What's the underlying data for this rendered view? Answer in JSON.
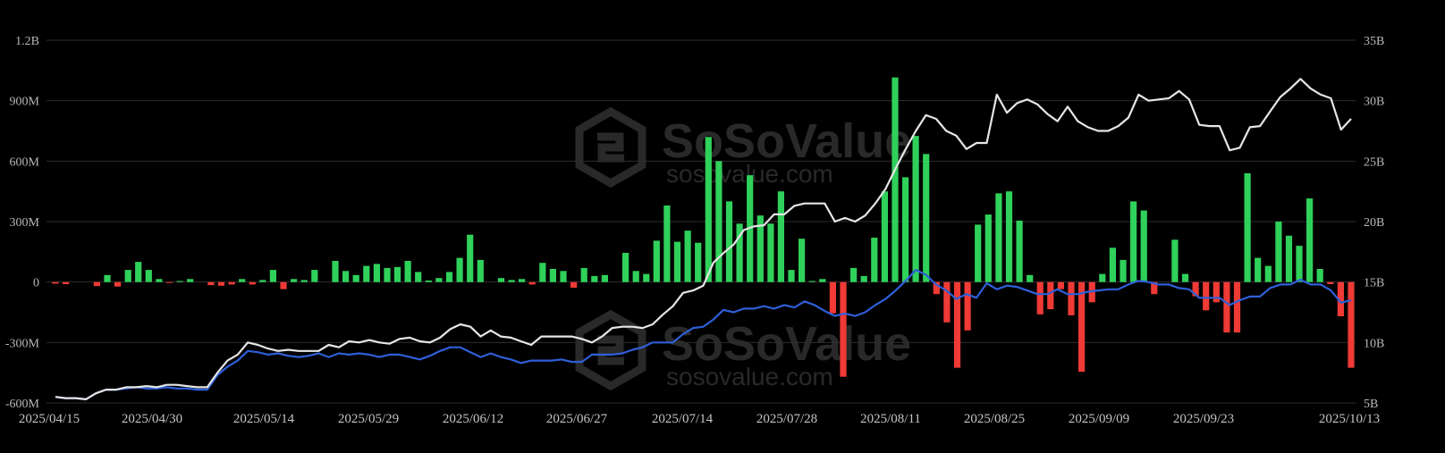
{
  "watermark": {
    "name": "SoSoValue",
    "url": "sosovalue.com"
  },
  "colors": {
    "inflow": "#2fd15a",
    "outflow": "#ef3a35",
    "line_white": "#e6e6e6",
    "line_blue": "#2f5fd8",
    "grid": "#2e2e2e"
  },
  "chart_data": {
    "type": "bar+line",
    "left_axis": {
      "ticks": [
        "1.2B",
        "900M",
        "600M",
        "300M",
        "0",
        "-300M",
        "-600M"
      ],
      "ylim": [
        -600,
        1200
      ],
      "unit": "M"
    },
    "right_axis": {
      "ticks": [
        "35B",
        "30B",
        "25B",
        "20B",
        "15B",
        "10B",
        "5B"
      ],
      "ylim": [
        5,
        35
      ],
      "unit": "B"
    },
    "x_ticks": [
      "2025/04/15",
      "2025/04/30",
      "2025/05/14",
      "2025/05/29",
      "2025/06/12",
      "2025/06/27",
      "2025/07/14",
      "2025/07/28",
      "2025/08/11",
      "2025/08/25",
      "2025/09/09",
      "2025/09/23",
      "2025/10/13"
    ],
    "series": [
      {
        "type": "bar",
        "values": [
          -8,
          -10,
          0,
          0,
          -20,
          35,
          -22,
          60,
          100,
          60,
          15,
          -3,
          5,
          15,
          0,
          -15,
          -18,
          -12,
          15,
          -12,
          10,
          60,
          -35,
          15,
          10,
          60,
          0,
          105,
          55,
          35,
          80,
          90,
          70,
          75,
          105,
          50,
          8,
          20,
          50,
          120,
          235,
          110,
          0,
          20,
          10,
          15,
          -12,
          95,
          65,
          55,
          -28,
          70,
          30,
          35,
          0,
          145,
          55,
          40,
          205,
          380,
          200,
          255,
          195,
          720,
          600,
          400,
          290,
          530,
          330,
          290,
          450,
          60,
          215,
          5,
          15,
          -155,
          -470,
          70,
          30,
          220,
          450,
          1015,
          520,
          725,
          635,
          -60,
          -200,
          -425,
          -240,
          285,
          335,
          440,
          450,
          305,
          35,
          -160,
          -135,
          -35,
          -165,
          -445,
          -100,
          40,
          170,
          110,
          400,
          355,
          -60,
          0,
          210,
          40,
          -70,
          -140,
          -100,
          -250,
          -250,
          540,
          120,
          80,
          300,
          230,
          180,
          415,
          65,
          -10,
          -170,
          -425
        ]
      },
      {
        "type": "line",
        "color": "white",
        "values": [
          5.5,
          5.4,
          5.4,
          5.3,
          5.8,
          6.1,
          6.1,
          6.3,
          6.3,
          6.4,
          6.3,
          6.5,
          6.5,
          6.4,
          6.3,
          6.3,
          7.5,
          8.5,
          9.0,
          10.0,
          9.8,
          9.5,
          9.3,
          9.4,
          9.3,
          9.3,
          9.3,
          9.8,
          9.6,
          10.1,
          10.0,
          10.2,
          10.0,
          9.9,
          10.3,
          10.4,
          10.1,
          10.0,
          10.4,
          11.1,
          11.5,
          11.3,
          10.5,
          11.0,
          10.5,
          10.4,
          10.1,
          9.8,
          10.5,
          10.5,
          10.5,
          10.5,
          10.3,
          10.0,
          10.5,
          11.2,
          11.3,
          11.3,
          11.2,
          11.5,
          12.3,
          13.0,
          14.1,
          14.3,
          14.7,
          16.6,
          17.4,
          18.1,
          19.3,
          19.6,
          19.7,
          20.6,
          20.6,
          21.3,
          21.5,
          21.5,
          21.5,
          20.0,
          20.3,
          20.0,
          20.5,
          21.5,
          22.7,
          24.4,
          26.0,
          27.5,
          28.8,
          28.5,
          27.5,
          27.1,
          26.0,
          26.5,
          26.5,
          30.5,
          29.0,
          29.8,
          30.1,
          29.7,
          28.9,
          28.3,
          29.5,
          28.3,
          27.8,
          27.5,
          27.5,
          27.9,
          28.6,
          30.5,
          30.0,
          30.1,
          30.2,
          30.8,
          30.1,
          28.0,
          27.9,
          27.9,
          25.9,
          26.1,
          27.8,
          27.9,
          29.1,
          30.3,
          31.0,
          31.8,
          31.0,
          30.5,
          30.2,
          27.6,
          28.5
        ]
      },
      {
        "type": "line",
        "color": "blue",
        "values": [
          5.5,
          5.4,
          5.4,
          5.3,
          5.8,
          6.1,
          6.1,
          6.2,
          6.3,
          6.2,
          6.2,
          6.3,
          6.2,
          6.2,
          6.1,
          6.1,
          7.3,
          8.0,
          8.5,
          9.3,
          9.2,
          9.0,
          9.1,
          8.9,
          8.8,
          8.9,
          9.1,
          8.8,
          9.1,
          9.0,
          9.1,
          9.0,
          8.8,
          9.0,
          9.0,
          8.8,
          8.6,
          8.9,
          9.3,
          9.6,
          9.6,
          9.2,
          8.8,
          9.1,
          8.8,
          8.6,
          8.3,
          8.5,
          8.5,
          8.5,
          8.6,
          8.4,
          8.4,
          9.0,
          9.0,
          9.0,
          9.1,
          9.4,
          9.6,
          10.0,
          10.0,
          10.0,
          10.7,
          11.2,
          11.3,
          11.9,
          12.7,
          12.5,
          12.8,
          12.8,
          13.0,
          12.8,
          13.1,
          12.9,
          13.4,
          13.1,
          12.6,
          12.2,
          12.4,
          12.2,
          12.5,
          13.1,
          13.6,
          14.3,
          15.1,
          16.0,
          15.6,
          14.8,
          14.3,
          13.6,
          14.0,
          13.7,
          14.9,
          14.4,
          14.7,
          14.6,
          14.3,
          14.0,
          14.0,
          14.4,
          14.0,
          14.0,
          14.2,
          14.3,
          14.4,
          14.4,
          14.8,
          15.1,
          15.0,
          14.8,
          14.8,
          14.5,
          14.4,
          13.7,
          13.7,
          13.7,
          13.1,
          13.5,
          13.8,
          13.8,
          14.5,
          14.8,
          14.8,
          15.2,
          14.8,
          14.8,
          14.3,
          13.3,
          13.5
        ]
      }
    ],
    "grid": true,
    "legend": "none"
  }
}
